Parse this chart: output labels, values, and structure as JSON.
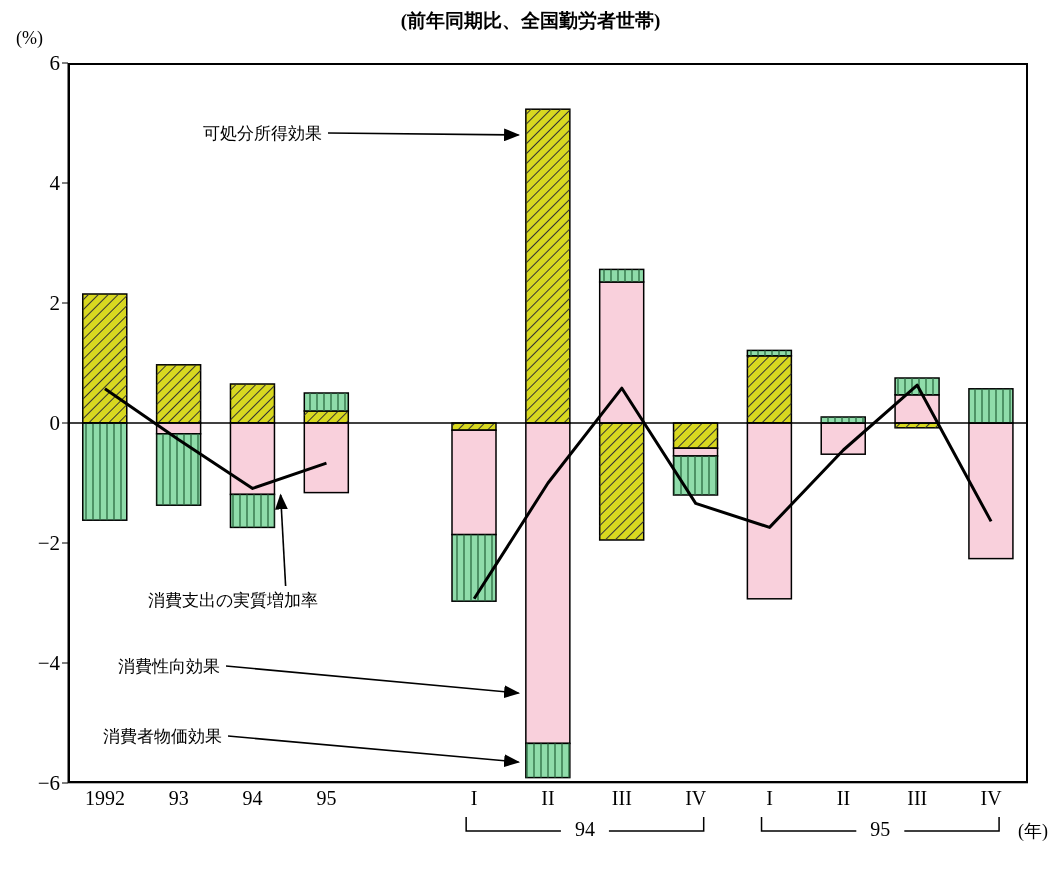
{
  "chart_data": {
    "type": "bar",
    "title": "(前年同期比、全国勤労者世帯)",
    "ylabel": "(%)",
    "categories": [
      "1992",
      "93",
      "94",
      "95",
      null,
      "I",
      "II",
      "III",
      "IV",
      "I",
      "II",
      "III",
      "IV"
    ],
    "stacked": true,
    "series": [
      {
        "name": "可処分所得効果",
        "color": "#d8d820",
        "values": [
          2.15,
          0.97,
          0.65,
          0.2,
          null,
          -0.12,
          5.23,
          -1.95,
          -0.42,
          1.12,
          0,
          -0.08,
          null
        ]
      },
      {
        "name": "消費性向効果",
        "color": "#f9d0dc",
        "values": [
          null,
          -0.18,
          -1.19,
          -1.16,
          null,
          -1.74,
          -5.34,
          2.35,
          -0.13,
          -2.93,
          -0.52,
          0.47,
          -2.26
        ]
      },
      {
        "name": "消費者物価効果",
        "color": "#8fdcaa",
        "values": [
          -1.62,
          -1.19,
          -0.55,
          0.3,
          null,
          -1.11,
          -0.57,
          0.21,
          -0.65,
          0.09,
          0.1,
          0.28,
          0.57
        ]
      },
      {
        "name": "消費支出の実質増加率",
        "type": "line",
        "color": "#000000",
        "values": [
          0.57,
          -0.28,
          -1.09,
          -0.67,
          null,
          -2.93,
          -1.0,
          0.58,
          -1.34,
          -1.74,
          -0.45,
          0.63,
          -1.64
        ]
      }
    ],
    "ylim": [
      -6,
      6
    ],
    "yticks": [
      {
        "value": -6,
        "label": "−6"
      },
      {
        "value": -4,
        "label": "−4"
      },
      {
        "value": -2,
        "label": "−2"
      },
      0,
      2,
      4,
      6
    ],
    "ref_lines": [
      {
        "axis": "y",
        "value": 0,
        "color": "#000000"
      }
    ],
    "marker": "none",
    "line_style": "solid",
    "legend": false,
    "grid": false,
    "annotations": [
      "94",
      "95",
      "(年)"
    ]
  }
}
